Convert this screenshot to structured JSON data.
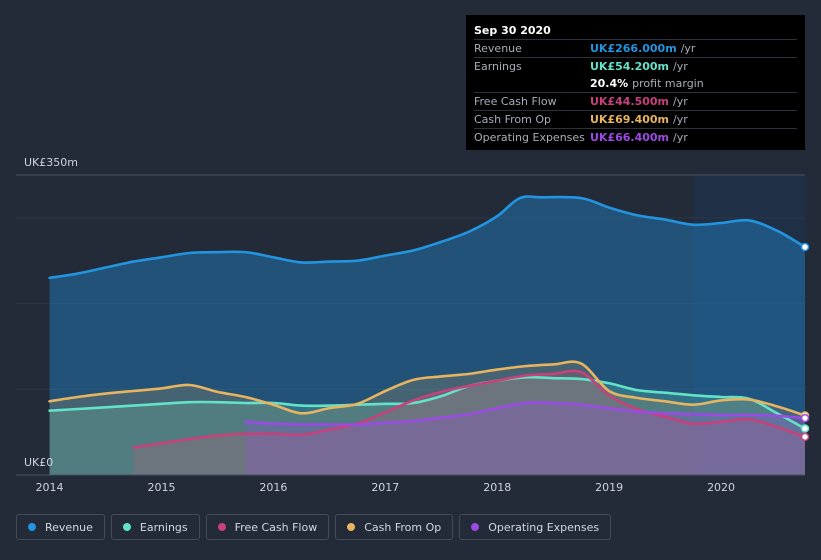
{
  "chart_data": {
    "type": "area",
    "y_axis": {
      "top_label": "UK£350m",
      "bottom_label": "UK£0",
      "ylim": [
        0,
        350
      ]
    },
    "x_ticks": [
      "2014",
      "2015",
      "2016",
      "2017",
      "2018",
      "2019",
      "2020"
    ],
    "x_range": [
      2013.7,
      2020.75
    ],
    "forecast_start": 2019.75,
    "series": [
      {
        "name": "Revenue",
        "color": "#2394df",
        "points": [
          [
            2014.0,
            230
          ],
          [
            2014.25,
            235
          ],
          [
            2014.5,
            242
          ],
          [
            2014.75,
            249
          ],
          [
            2015.0,
            254
          ],
          [
            2015.25,
            259
          ],
          [
            2015.5,
            260
          ],
          [
            2015.75,
            260
          ],
          [
            2016.0,
            254
          ],
          [
            2016.25,
            248
          ],
          [
            2016.5,
            249
          ],
          [
            2016.75,
            250
          ],
          [
            2017.0,
            256
          ],
          [
            2017.25,
            262
          ],
          [
            2017.5,
            272
          ],
          [
            2017.75,
            284
          ],
          [
            2018.0,
            302
          ],
          [
            2018.2,
            323
          ],
          [
            2018.4,
            324
          ],
          [
            2018.75,
            323
          ],
          [
            2019.0,
            312
          ],
          [
            2019.25,
            303
          ],
          [
            2019.5,
            298
          ],
          [
            2019.75,
            292
          ],
          [
            2020.0,
            294
          ],
          [
            2020.25,
            297
          ],
          [
            2020.5,
            285
          ],
          [
            2020.75,
            266
          ]
        ]
      },
      {
        "name": "Earnings",
        "color": "#64e2c8",
        "points": [
          [
            2014.0,
            75
          ],
          [
            2014.25,
            77
          ],
          [
            2014.5,
            79
          ],
          [
            2014.75,
            81
          ],
          [
            2015.0,
            83
          ],
          [
            2015.25,
            85
          ],
          [
            2015.5,
            85
          ],
          [
            2015.75,
            84
          ],
          [
            2016.0,
            84
          ],
          [
            2016.25,
            81
          ],
          [
            2016.5,
            81
          ],
          [
            2016.75,
            82
          ],
          [
            2017.0,
            83
          ],
          [
            2017.25,
            84
          ],
          [
            2017.5,
            92
          ],
          [
            2017.75,
            104
          ],
          [
            2018.0,
            110
          ],
          [
            2018.25,
            114
          ],
          [
            2018.5,
            113
          ],
          [
            2018.75,
            112
          ],
          [
            2019.0,
            107
          ],
          [
            2019.25,
            99
          ],
          [
            2019.5,
            96
          ],
          [
            2019.75,
            93
          ],
          [
            2020.0,
            91
          ],
          [
            2020.25,
            89
          ],
          [
            2020.5,
            72
          ],
          [
            2020.75,
            54.2
          ]
        ]
      },
      {
        "name": "Free Cash Flow",
        "color": "#c7417a",
        "points": [
          [
            2014.75,
            32
          ],
          [
            2015.0,
            37
          ],
          [
            2015.25,
            42
          ],
          [
            2015.5,
            46
          ],
          [
            2015.75,
            48
          ],
          [
            2016.0,
            48
          ],
          [
            2016.25,
            47
          ],
          [
            2016.5,
            53
          ],
          [
            2016.75,
            60
          ],
          [
            2017.0,
            73
          ],
          [
            2017.25,
            87
          ],
          [
            2017.5,
            97
          ],
          [
            2017.75,
            104
          ],
          [
            2018.0,
            110
          ],
          [
            2018.25,
            116
          ],
          [
            2018.5,
            118
          ],
          [
            2018.75,
            120
          ],
          [
            2019.0,
            93
          ],
          [
            2019.25,
            77
          ],
          [
            2019.5,
            68
          ],
          [
            2019.75,
            60
          ],
          [
            2020.0,
            62
          ],
          [
            2020.25,
            65
          ],
          [
            2020.5,
            56
          ],
          [
            2020.75,
            44.5
          ]
        ]
      },
      {
        "name": "Cash From Op",
        "color": "#e8b45f",
        "points": [
          [
            2014.0,
            86
          ],
          [
            2014.25,
            91
          ],
          [
            2014.5,
            95
          ],
          [
            2014.75,
            98
          ],
          [
            2015.0,
            101
          ],
          [
            2015.25,
            105
          ],
          [
            2015.5,
            97
          ],
          [
            2015.75,
            91
          ],
          [
            2016.0,
            82
          ],
          [
            2016.25,
            72
          ],
          [
            2016.5,
            78
          ],
          [
            2016.75,
            83
          ],
          [
            2017.0,
            98
          ],
          [
            2017.25,
            111
          ],
          [
            2017.5,
            115
          ],
          [
            2017.75,
            118
          ],
          [
            2018.0,
            123
          ],
          [
            2018.25,
            127
          ],
          [
            2018.5,
            129
          ],
          [
            2018.75,
            130
          ],
          [
            2019.0,
            98
          ],
          [
            2019.25,
            90
          ],
          [
            2019.5,
            86
          ],
          [
            2019.75,
            82
          ],
          [
            2020.0,
            87
          ],
          [
            2020.25,
            88
          ],
          [
            2020.5,
            80
          ],
          [
            2020.75,
            69.4
          ]
        ]
      },
      {
        "name": "Operating Expenses",
        "color": "#9b4be3",
        "points": [
          [
            2015.75,
            62
          ],
          [
            2016.0,
            60
          ],
          [
            2016.25,
            59
          ],
          [
            2016.5,
            59
          ],
          [
            2016.75,
            59
          ],
          [
            2017.0,
            61
          ],
          [
            2017.25,
            63
          ],
          [
            2017.5,
            67
          ],
          [
            2017.75,
            71
          ],
          [
            2018.0,
            78
          ],
          [
            2018.25,
            84
          ],
          [
            2018.5,
            84
          ],
          [
            2018.75,
            82
          ],
          [
            2019.0,
            78
          ],
          [
            2019.25,
            74
          ],
          [
            2019.5,
            72
          ],
          [
            2019.75,
            71
          ],
          [
            2020.0,
            70
          ],
          [
            2020.25,
            70
          ],
          [
            2020.5,
            69
          ],
          [
            2020.75,
            66.4
          ]
        ]
      }
    ]
  },
  "tooltip": {
    "date": "Sep 30 2020",
    "rows": [
      {
        "label": "Revenue",
        "value": "UK£266.000m",
        "unit": "/yr",
        "color": "#2394df"
      },
      {
        "label": "Earnings",
        "value": "UK£54.200m",
        "unit": "/yr",
        "color": "#64e2c8"
      },
      {
        "label": "",
        "value": "20.4%",
        "unit": "profit margin",
        "color": "#ffffff"
      },
      {
        "label": "Free Cash Flow",
        "value": "UK£44.500m",
        "unit": "/yr",
        "color": "#c7417a"
      },
      {
        "label": "Cash From Op",
        "value": "UK£69.400m",
        "unit": "/yr",
        "color": "#e8b45f"
      },
      {
        "label": "Operating Expenses",
        "value": "UK£66.400m",
        "unit": "/yr",
        "color": "#9b4be3"
      }
    ]
  },
  "legend": [
    {
      "label": "Revenue",
      "color": "#2394df"
    },
    {
      "label": "Earnings",
      "color": "#64e2c8"
    },
    {
      "label": "Free Cash Flow",
      "color": "#c7417a"
    },
    {
      "label": "Cash From Op",
      "color": "#e8b45f"
    },
    {
      "label": "Operating Expenses",
      "color": "#9b4be3"
    }
  ]
}
